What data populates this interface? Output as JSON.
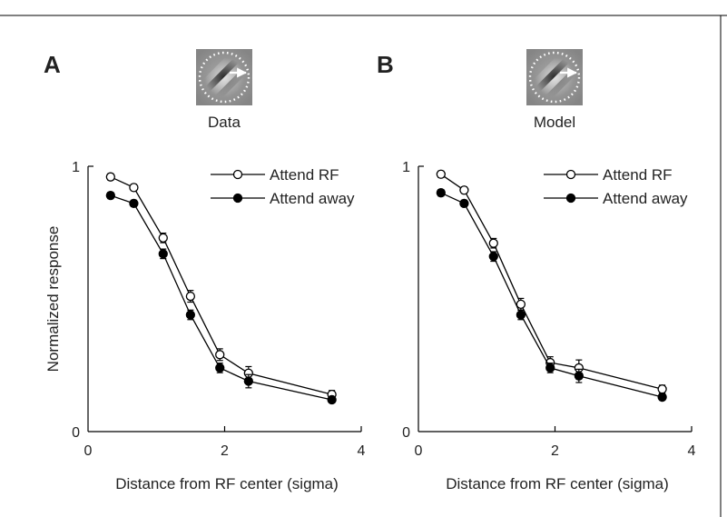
{
  "chart_data": [
    {
      "type": "line",
      "panel_letter": "A",
      "title": "Data",
      "xlabel": "Distance from RF center (sigma)",
      "ylabel": "Normalized response",
      "xlim": [
        0,
        4
      ],
      "ylim": [
        0,
        1
      ],
      "xticks": [
        "0",
        "2",
        "4"
      ],
      "yticks": [
        "0",
        "1"
      ],
      "legend_position": "top-right",
      "series": [
        {
          "name": "Attend RF",
          "marker": "open-circle",
          "x": [
            0.33,
            0.67,
            1.1,
            1.5,
            1.93,
            2.35,
            3.57
          ],
          "y": [
            0.96,
            0.92,
            0.73,
            0.51,
            0.29,
            0.22,
            0.14
          ],
          "err": [
            0.012,
            0.012,
            0.018,
            0.022,
            0.022,
            0.025,
            0.015
          ]
        },
        {
          "name": "Attend away",
          "marker": "filled-circle",
          "x": [
            0.33,
            0.67,
            1.1,
            1.5,
            1.93,
            2.35,
            3.57
          ],
          "y": [
            0.89,
            0.86,
            0.67,
            0.44,
            0.24,
            0.19,
            0.12
          ],
          "err": [
            0.012,
            0.012,
            0.018,
            0.018,
            0.018,
            0.025,
            0.012
          ]
        }
      ]
    },
    {
      "type": "line",
      "panel_letter": "B",
      "title": "Model",
      "xlabel": "Distance from RF center (sigma)",
      "ylabel": "",
      "xlim": [
        0,
        4
      ],
      "ylim": [
        0,
        1
      ],
      "xticks": [
        "0",
        "2",
        "4"
      ],
      "yticks": [
        "0",
        "1"
      ],
      "legend_position": "top-right",
      "series": [
        {
          "name": "Attend RF",
          "marker": "open-circle",
          "x": [
            0.33,
            0.67,
            1.1,
            1.5,
            1.93,
            2.35,
            3.57
          ],
          "y": [
            0.97,
            0.91,
            0.71,
            0.48,
            0.26,
            0.24,
            0.16
          ],
          "err": [
            0.012,
            0.012,
            0.018,
            0.022,
            0.022,
            0.03,
            0.015
          ]
        },
        {
          "name": "Attend away",
          "marker": "filled-circle",
          "x": [
            0.33,
            0.67,
            1.1,
            1.5,
            1.93,
            2.35,
            3.57
          ],
          "y": [
            0.9,
            0.86,
            0.66,
            0.44,
            0.24,
            0.21,
            0.13
          ],
          "err": [
            0.012,
            0.012,
            0.018,
            0.018,
            0.018,
            0.025,
            0.012
          ]
        }
      ]
    }
  ]
}
